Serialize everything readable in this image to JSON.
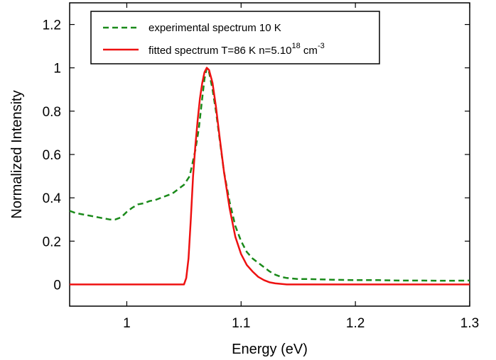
{
  "chart_data": {
    "type": "line",
    "xlabel": "Energy (eV)",
    "ylabel": "Normalized Intensity",
    "xlim": [
      0.95,
      1.3
    ],
    "ylim": [
      -0.1,
      1.3
    ],
    "x_ticks": [
      1,
      1.1,
      1.2,
      1.3
    ],
    "x_tick_labels": [
      "1",
      "1.1",
      "1.2",
      "1.3"
    ],
    "y_ticks": [
      0,
      0.2,
      0.4,
      0.6,
      0.8,
      1,
      1.2
    ],
    "y_tick_labels": [
      "0",
      "0.2",
      "0.4",
      "0.6",
      "0.8",
      "1",
      "1.2"
    ],
    "grid": false,
    "legend_position": "top-left",
    "series": [
      {
        "name": "experimental spectrum 10 K",
        "color": "#1a8a1a",
        "style": "dashed",
        "points": [
          [
            0.95,
            0.34
          ],
          [
            0.955,
            0.33
          ],
          [
            0.96,
            0.325
          ],
          [
            0.965,
            0.32
          ],
          [
            0.97,
            0.315
          ],
          [
            0.975,
            0.31
          ],
          [
            0.98,
            0.305
          ],
          [
            0.985,
            0.3
          ],
          [
            0.99,
            0.3
          ],
          [
            0.995,
            0.31
          ],
          [
            1.0,
            0.335
          ],
          [
            1.005,
            0.355
          ],
          [
            1.01,
            0.37
          ],
          [
            1.015,
            0.375
          ],
          [
            1.02,
            0.385
          ],
          [
            1.025,
            0.39
          ],
          [
            1.03,
            0.4
          ],
          [
            1.035,
            0.41
          ],
          [
            1.04,
            0.42
          ],
          [
            1.045,
            0.44
          ],
          [
            1.05,
            0.46
          ],
          [
            1.055,
            0.5
          ],
          [
            1.06,
            0.62
          ],
          [
            1.063,
            0.72
          ],
          [
            1.066,
            0.86
          ],
          [
            1.068,
            0.95
          ],
          [
            1.07,
            1.0
          ],
          [
            1.072,
            0.98
          ],
          [
            1.075,
            0.9
          ],
          [
            1.078,
            0.8
          ],
          [
            1.081,
            0.68
          ],
          [
            1.085,
            0.52
          ],
          [
            1.09,
            0.38
          ],
          [
            1.095,
            0.27
          ],
          [
            1.1,
            0.2
          ],
          [
            1.105,
            0.15
          ],
          [
            1.11,
            0.12
          ],
          [
            1.115,
            0.1
          ],
          [
            1.12,
            0.08
          ],
          [
            1.125,
            0.06
          ],
          [
            1.13,
            0.045
          ],
          [
            1.135,
            0.035
          ],
          [
            1.14,
            0.03
          ],
          [
            1.15,
            0.025
          ],
          [
            1.16,
            0.025
          ],
          [
            1.18,
            0.022
          ],
          [
            1.2,
            0.02
          ],
          [
            1.22,
            0.02
          ],
          [
            1.24,
            0.018
          ],
          [
            1.26,
            0.018
          ],
          [
            1.28,
            0.017
          ],
          [
            1.3,
            0.018
          ]
        ]
      },
      {
        "name": "fitted spectrum T=86 K  n=5.10¹⁸ cm⁻³",
        "color": "#ee1111",
        "style": "solid",
        "points": [
          [
            0.95,
            0.0
          ],
          [
            1.0,
            0.0
          ],
          [
            1.05,
            0.0
          ],
          [
            1.052,
            0.03
          ],
          [
            1.054,
            0.12
          ],
          [
            1.056,
            0.3
          ],
          [
            1.058,
            0.5
          ],
          [
            1.06,
            0.64
          ],
          [
            1.062,
            0.76
          ],
          [
            1.064,
            0.86
          ],
          [
            1.066,
            0.93
          ],
          [
            1.068,
            0.98
          ],
          [
            1.07,
            1.0
          ],
          [
            1.072,
            0.99
          ],
          [
            1.075,
            0.93
          ],
          [
            1.078,
            0.82
          ],
          [
            1.081,
            0.69
          ],
          [
            1.085,
            0.52
          ],
          [
            1.09,
            0.35
          ],
          [
            1.095,
            0.22
          ],
          [
            1.1,
            0.14
          ],
          [
            1.105,
            0.09
          ],
          [
            1.11,
            0.06
          ],
          [
            1.115,
            0.035
          ],
          [
            1.12,
            0.02
          ],
          [
            1.125,
            0.01
          ],
          [
            1.13,
            0.005
          ],
          [
            1.14,
            0.0
          ],
          [
            1.2,
            0.0
          ],
          [
            1.25,
            0.0
          ],
          [
            1.3,
            0.0
          ]
        ]
      }
    ]
  },
  "legend": {
    "exp_label": "experimental spectrum 10 K",
    "fit_label_main": "fitted spectrum T=86 K  n=5.10",
    "fit_label_exp": "18",
    "fit_label_unit": " cm",
    "fit_label_unit_exp": "-3"
  }
}
